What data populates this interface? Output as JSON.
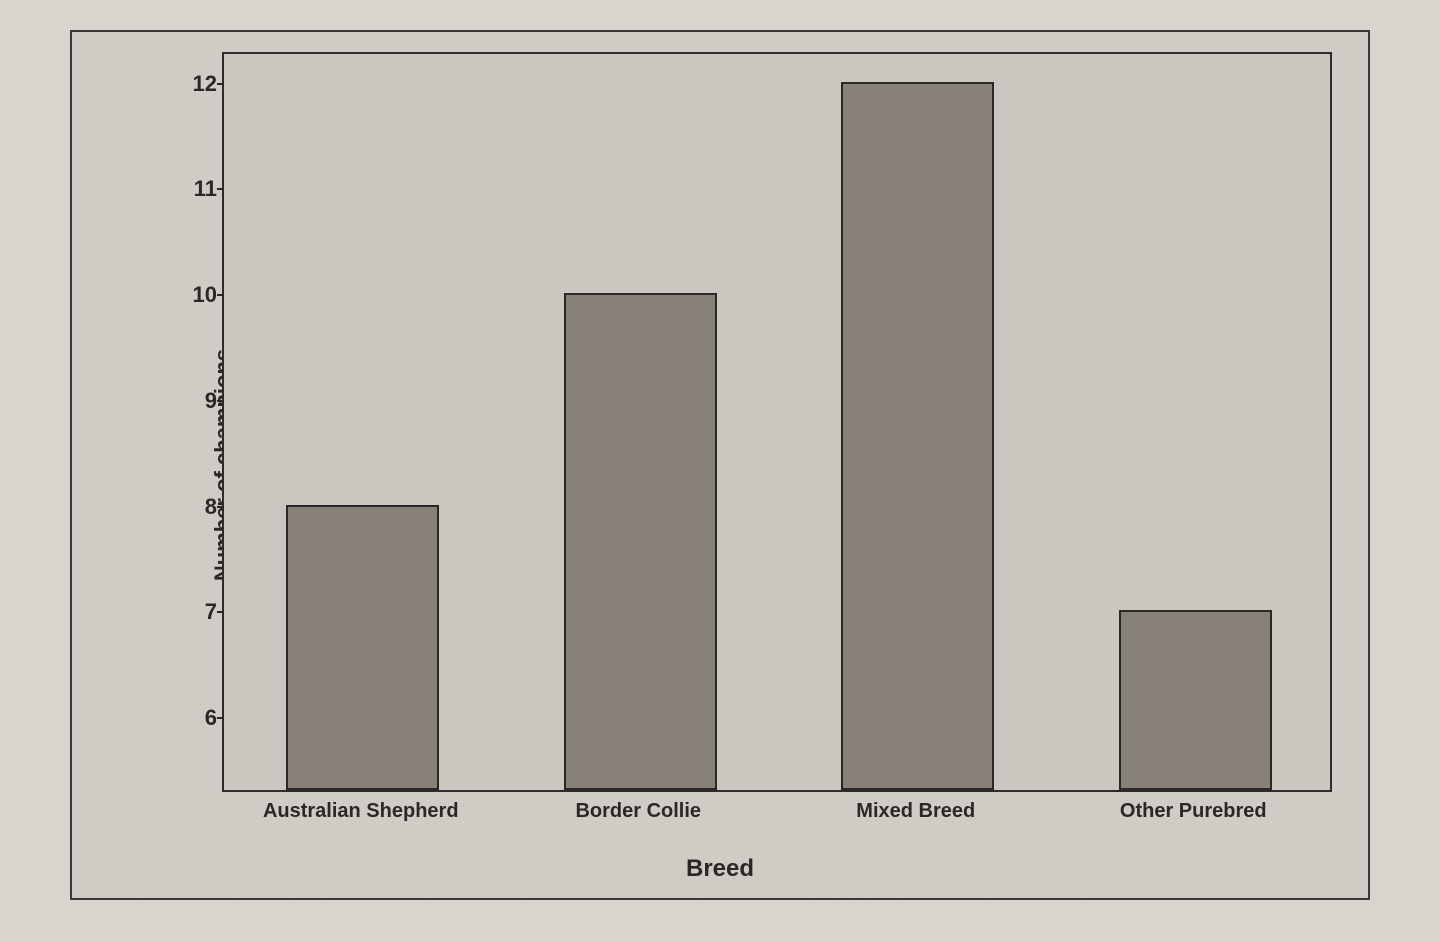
{
  "chart": {
    "type": "bar",
    "ylabel": "Number of champions",
    "xlabel": "Breed",
    "label_fontsize": 22,
    "background_color": "#cbc7c0",
    "page_background_color": "#d8d4ce",
    "border_color": "#2e2c2b",
    "bar_color": "#888178",
    "bar_border_color": "#2a2827",
    "text_color": "#2a2827",
    "ylim": [
      5.3,
      12.3
    ],
    "ytick_step": 1,
    "yticks": [
      6,
      7,
      8,
      9,
      10,
      11,
      12
    ],
    "bar_width": 0.55,
    "categories": [
      "Australian Shepherd",
      "Border Collie",
      "Mixed Breed",
      "Other Purebred"
    ],
    "values": [
      8,
      10,
      12,
      7
    ],
    "tick_fontsize": 22,
    "xtick_fontsize": 20
  }
}
